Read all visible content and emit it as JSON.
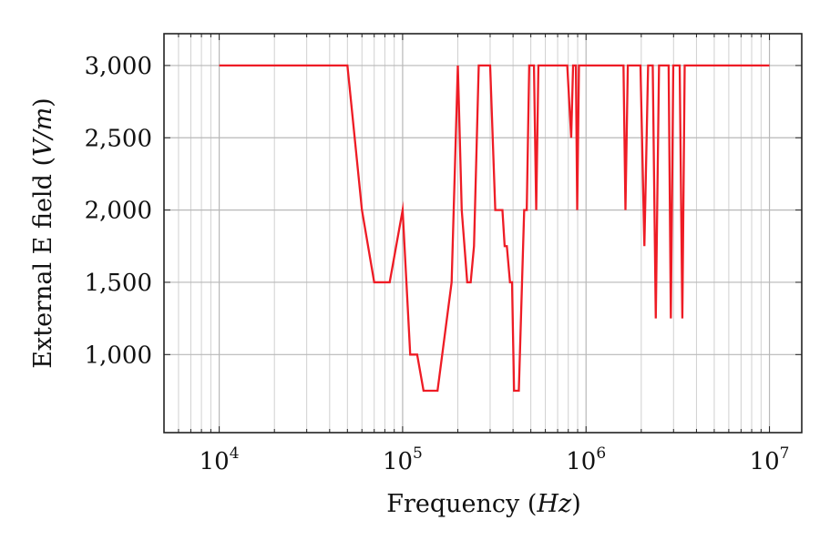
{
  "chart_data": {
    "type": "line",
    "title": "",
    "xlabel": "Frequency (Hz)",
    "xlabel_text": "Frequency (",
    "xlabel_unit": "Hz",
    "xlabel_close": ")",
    "ylabel": "External E field (V/m)",
    "ylabel_text": "External E field (",
    "ylabel_unit": "V/m",
    "ylabel_close": ")",
    "xscale": "log",
    "xlim": [
      5000,
      15000000
    ],
    "ylim": [
      460,
      3220
    ],
    "grid": true,
    "legend": "none",
    "x_ticks": [
      {
        "value": 10000,
        "base": "10",
        "exp": "4"
      },
      {
        "value": 100000,
        "base": "10",
        "exp": "5"
      },
      {
        "value": 1000000,
        "base": "10",
        "exp": "6"
      },
      {
        "value": 10000000,
        "base": "10",
        "exp": "7"
      }
    ],
    "y_ticks": [
      {
        "value": 1000,
        "label": "1,000"
      },
      {
        "value": 1500,
        "label": "1,500"
      },
      {
        "value": 2000,
        "label": "2,000"
      },
      {
        "value": 2500,
        "label": "2,500"
      },
      {
        "value": 3000,
        "label": "3,000"
      }
    ],
    "series": [
      {
        "name": "External E field",
        "color": "#ee1c25",
        "points": [
          [
            10000,
            3000
          ],
          [
            50000,
            3000
          ],
          [
            60000,
            2000
          ],
          [
            70000,
            1500
          ],
          [
            85000,
            1500
          ],
          [
            100000,
            2000
          ],
          [
            110000,
            1000
          ],
          [
            120000,
            1000
          ],
          [
            130000,
            750
          ],
          [
            155000,
            750
          ],
          [
            185000,
            1500
          ],
          [
            200000,
            3000
          ],
          [
            210000,
            2000
          ],
          [
            225000,
            1500
          ],
          [
            235000,
            1500
          ],
          [
            245000,
            1750
          ],
          [
            260000,
            3000
          ],
          [
            300000,
            3000
          ],
          [
            320000,
            2000
          ],
          [
            350000,
            2000
          ],
          [
            360000,
            1750
          ],
          [
            370000,
            1750
          ],
          [
            385000,
            1500
          ],
          [
            395000,
            1500
          ],
          [
            405000,
            750
          ],
          [
            430000,
            750
          ],
          [
            460000,
            2000
          ],
          [
            475000,
            2000
          ],
          [
            490000,
            3000
          ],
          [
            520000,
            3000
          ],
          [
            535000,
            2000
          ],
          [
            550000,
            3000
          ],
          [
            790000,
            3000
          ],
          [
            830000,
            2500
          ],
          [
            850000,
            3000
          ],
          [
            880000,
            3000
          ],
          [
            895000,
            2000
          ],
          [
            915000,
            3000
          ],
          [
            1600000,
            3000
          ],
          [
            1640000,
            2000
          ],
          [
            1690000,
            3000
          ],
          [
            1980000,
            3000
          ],
          [
            2080000,
            1750
          ],
          [
            2180000,
            3000
          ],
          [
            2310000,
            3000
          ],
          [
            2400000,
            1250
          ],
          [
            2500000,
            3000
          ],
          [
            2820000,
            3000
          ],
          [
            2900000,
            1250
          ],
          [
            2990000,
            3000
          ],
          [
            3240000,
            3000
          ],
          [
            3350000,
            1250
          ],
          [
            3450000,
            3000
          ],
          [
            10000000,
            3000
          ]
        ]
      }
    ]
  }
}
